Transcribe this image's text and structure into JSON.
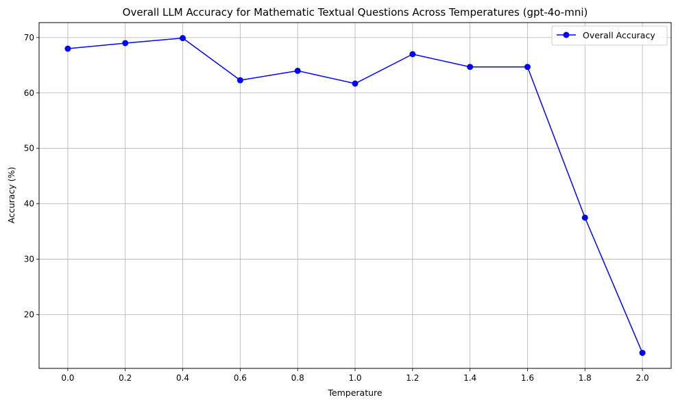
{
  "chart_data": {
    "type": "line",
    "title": "Overall LLM Accuracy for Mathematic Textual Questions Across Temperatures (gpt-4o-mni)",
    "xlabel": "Temperature",
    "ylabel": "Accuracy (%)",
    "x": [
      0.0,
      0.2,
      0.4,
      0.6,
      0.8,
      1.0,
      1.2,
      1.4,
      1.6,
      1.8,
      2.0
    ],
    "x_tick_labels": [
      "0.0",
      "0.2",
      "0.4",
      "0.6",
      "0.8",
      "1.0",
      "1.2",
      "1.4",
      "1.6",
      "1.8",
      "2.0"
    ],
    "y_ticks": [
      20,
      30,
      40,
      50,
      60,
      70
    ],
    "y_tick_labels": [
      "20",
      "30",
      "40",
      "50",
      "60",
      "70"
    ],
    "xlim": [
      -0.1,
      2.1
    ],
    "ylim": [
      10.3,
      72.7
    ],
    "grid": true,
    "legend_position": "top-right",
    "series": [
      {
        "name": "Overall Accuracy",
        "color": "#0000ff",
        "marker": "circle",
        "values": [
          68.0,
          69.0,
          69.9,
          62.3,
          64.0,
          61.7,
          67.0,
          64.7,
          64.7,
          37.5,
          13.1
        ]
      }
    ]
  }
}
